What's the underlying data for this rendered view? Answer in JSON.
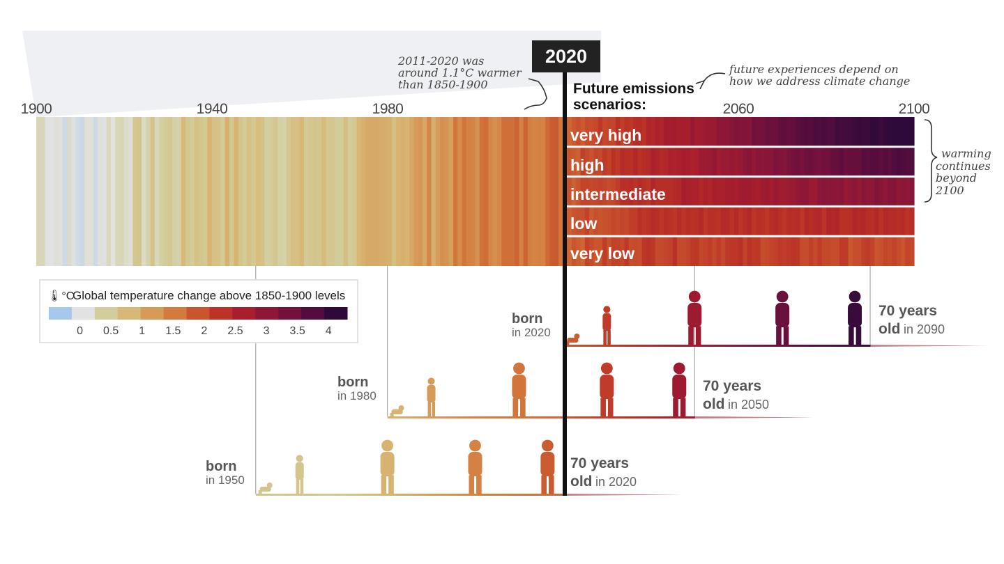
{
  "header": {
    "current_year": "2020",
    "annotation_past": "2011-2020 was around 1.1°C warmer than 1850-1900",
    "annotation_past_lines": [
      "2011-2020 was",
      "around 1.1°C warmer",
      "than 1850-1900"
    ],
    "future_title_lines": [
      "Future emissions",
      "scenarios:"
    ],
    "annotation_future_lines": [
      "future experiences depend on",
      "how we address climate change"
    ],
    "annotation_beyond_lines": [
      "warming",
      "continues",
      "beyond",
      "2100"
    ]
  },
  "chart_data": {
    "type": "heatmap",
    "title": "",
    "x_range": [
      1900,
      2100
    ],
    "x_ticks": [
      "1900",
      "1940",
      "1980",
      "2020",
      "2060",
      "2100"
    ],
    "x_tick_values": [
      1900,
      1940,
      1980,
      2020,
      2060,
      2100
    ],
    "value_unit": "°C",
    "historical": {
      "years": [
        1900,
        1910,
        1920,
        1930,
        1940,
        1950,
        1960,
        1970,
        1980,
        1990,
        2000,
        2010,
        2020
      ],
      "anomaly_c": [
        0.2,
        -0.1,
        0.2,
        0.3,
        0.5,
        0.4,
        0.4,
        0.4,
        0.6,
        0.8,
        1.0,
        1.1,
        1.2
      ]
    },
    "scenarios": [
      {
        "name": "very high",
        "years": [
          2020,
          2040,
          2060,
          2080,
          2100
        ],
        "anomaly_c": [
          1.3,
          1.9,
          2.7,
          3.6,
          4.4
        ]
      },
      {
        "name": "high",
        "years": [
          2020,
          2040,
          2060,
          2080,
          2100
        ],
        "anomaly_c": [
          1.3,
          1.9,
          2.5,
          3.1,
          3.6
        ]
      },
      {
        "name": "intermediate",
        "years": [
          2020,
          2040,
          2060,
          2080,
          2100
        ],
        "anomaly_c": [
          1.3,
          1.8,
          2.2,
          2.5,
          2.7
        ]
      },
      {
        "name": "low",
        "years": [
          2020,
          2040,
          2060,
          2080,
          2100
        ],
        "anomaly_c": [
          1.3,
          1.7,
          1.8,
          1.8,
          1.8
        ]
      },
      {
        "name": "very low",
        "years": [
          2020,
          2040,
          2060,
          2080,
          2100
        ],
        "anomaly_c": [
          1.3,
          1.6,
          1.6,
          1.5,
          1.4
        ]
      }
    ],
    "legend": {
      "title": "Global temperature change above 1850-1900 levels",
      "unit": "°C",
      "ticks": [
        "0",
        "0.5",
        "1",
        "1.5",
        "2",
        "2.5",
        "3",
        "3.5",
        "4"
      ],
      "tick_values": [
        0,
        0.5,
        1,
        1.5,
        2,
        2.5,
        3,
        3.5,
        4
      ],
      "range": [
        -0.5,
        4.3
      ]
    }
  },
  "colors": {
    "scale": [
      "#a6c9eb",
      "#e2e2e2",
      "#d2cd9a",
      "#d8b877",
      "#d69a59",
      "#d37b3e",
      "#c9542e",
      "#bb3226",
      "#a81e2d",
      "#8e1737",
      "#72113c",
      "#530d3d",
      "#2e0a3a"
    ],
    "scale_stops_c": [
      -0.4,
      0.0,
      0.3,
      0.55,
      0.8,
      1.05,
      1.35,
      1.7,
      2.1,
      2.55,
      3.0,
      3.5,
      4.2
    ],
    "timeline_bar": "#000000"
  },
  "generations": [
    {
      "born_label": "born",
      "born_year_text": "in 1950",
      "birth_year": 1950,
      "age_label": "70 years",
      "age_year_text": "old in 2020",
      "old_word": "old",
      "old_suffix": "in 2020"
    },
    {
      "born_label": "born",
      "born_year_text": "in 1980",
      "birth_year": 1980,
      "age_label": "70 years",
      "age_year_text": "old in 2050",
      "old_word": "old",
      "old_suffix": "in 2050"
    },
    {
      "born_label": "born",
      "born_year_text": "in 2020",
      "birth_year": 2020,
      "age_label": "70 years",
      "age_year_text": "old in 2090",
      "old_word": "old",
      "old_suffix": "in 2090"
    }
  ]
}
